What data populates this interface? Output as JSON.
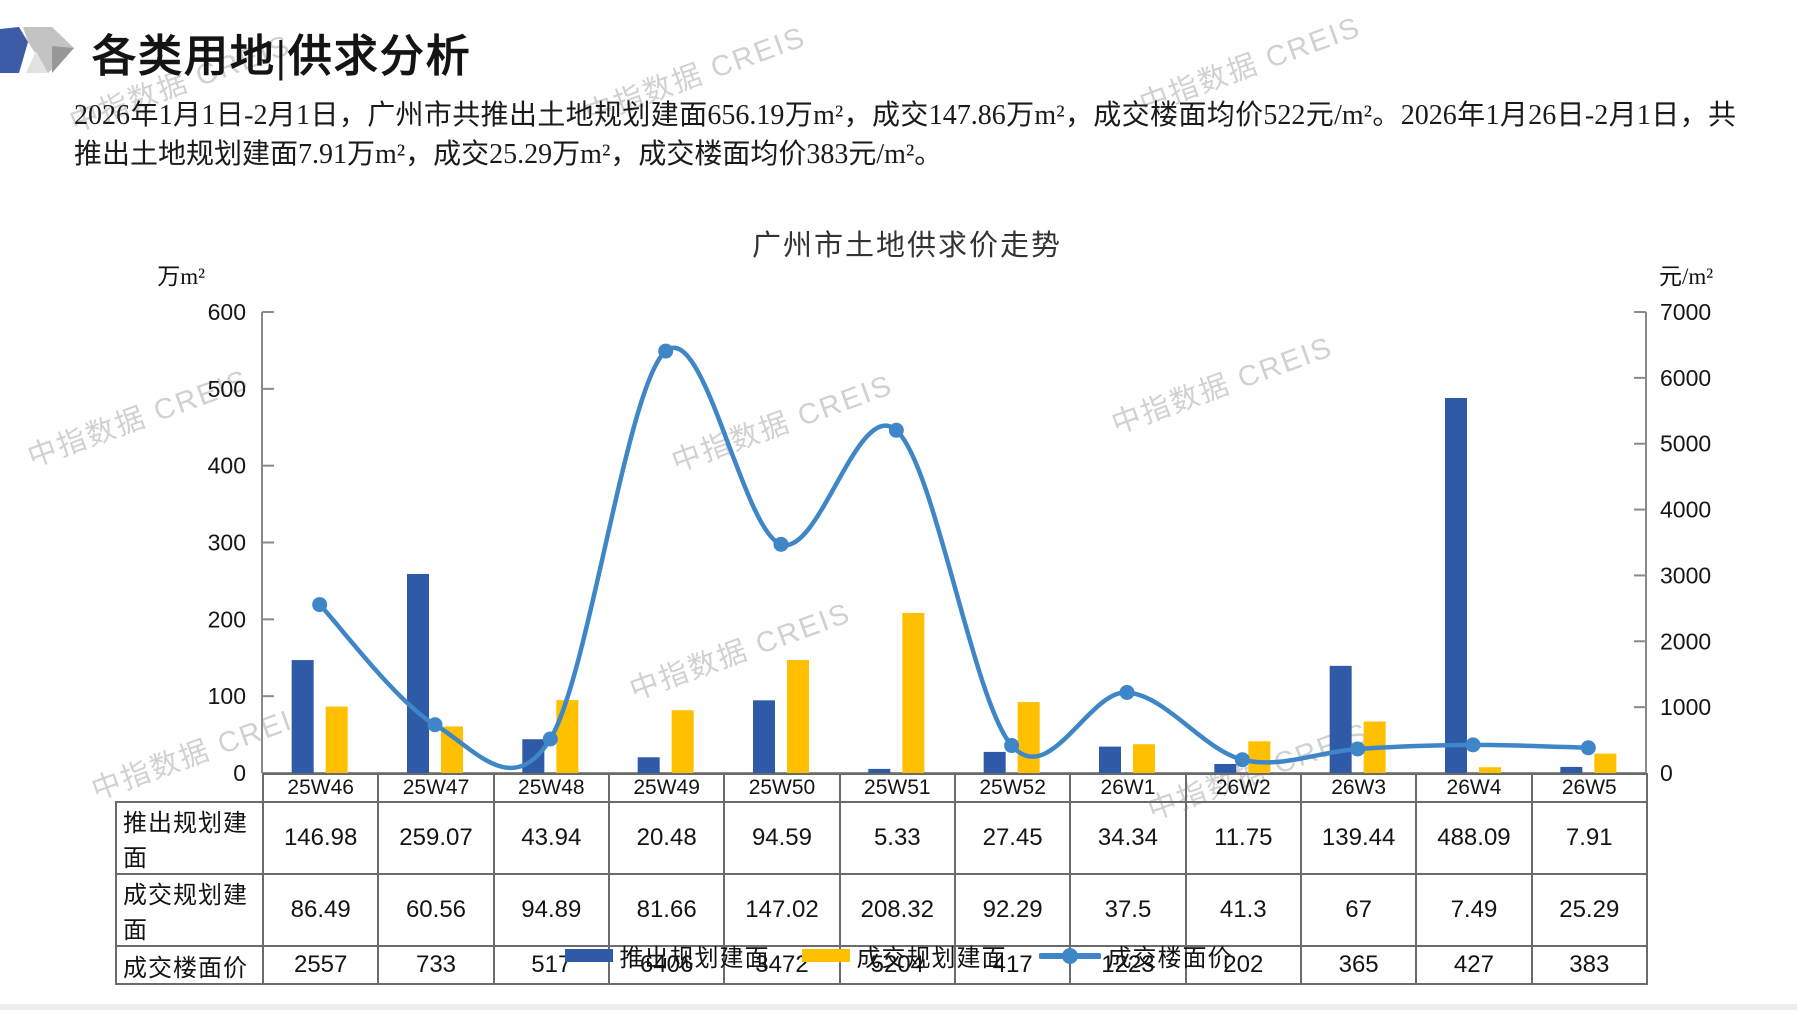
{
  "page": {
    "title": "各类用地|供求分析",
    "summary": "2026年1月1日-2月1日，广州市共推出土地规划建面656.19万m²，成交147.86万m²，成交楼面均价522元/m²。2026年1月26日-2月1日，共推出土地规划建面7.91万m²，成交25.29万m²，成交楼面均价383元/m²。",
    "watermark_text": "中指数据 CREIS"
  },
  "chart_data": {
    "type": "combo-bar-line",
    "title": "广州市土地供求价走势",
    "categories": [
      "25W46",
      "25W47",
      "25W48",
      "25W49",
      "25W50",
      "25W51",
      "25W52",
      "26W1",
      "26W2",
      "26W3",
      "26W4",
      "26W5"
    ],
    "series": [
      {
        "name": "推出规划建面",
        "type": "bar",
        "axis": "left",
        "color": "#2E5AA7",
        "values": [
          146.98,
          259.07,
          43.94,
          20.48,
          94.59,
          5.33,
          27.45,
          34.34,
          11.75,
          139.44,
          488.09,
          7.91
        ]
      },
      {
        "name": "成交规划建面",
        "type": "bar",
        "axis": "left",
        "color": "#FFC000",
        "values": [
          86.49,
          60.56,
          94.89,
          81.66,
          147.02,
          208.32,
          92.29,
          37.5,
          41.3,
          67,
          7.49,
          25.29
        ]
      },
      {
        "name": "成交楼面价",
        "type": "line",
        "axis": "right",
        "color": "#3E86C8",
        "values": [
          2557,
          733,
          517,
          6406,
          3472,
          5204,
          417,
          1223,
          202,
          365,
          427,
          383
        ]
      }
    ],
    "left_axis": {
      "unit": "万m²",
      "min": 0,
      "max": 600,
      "ticks": [
        "0",
        "100",
        "200",
        "300",
        "400",
        "500",
        "600"
      ]
    },
    "right_axis": {
      "unit": "元/m²",
      "min": 0,
      "max": 7000,
      "ticks": [
        "0",
        "1000",
        "2000",
        "3000",
        "4000",
        "5000",
        "6000",
        "7000"
      ]
    },
    "gridlines": false,
    "legend_position": "bottom",
    "table": {
      "row_headers": [
        "推出规划建面",
        "成交规划建面",
        "成交楼面价"
      ],
      "rows": [
        [
          "146.98",
          "259.07",
          "43.94",
          "20.48",
          "94.59",
          "5.33",
          "27.45",
          "34.34",
          "11.75",
          "139.44",
          "488.09",
          "7.91"
        ],
        [
          "86.49",
          "60.56",
          "94.89",
          "81.66",
          "147.02",
          "208.32",
          "92.29",
          "37.5",
          "41.3",
          "67",
          "7.49",
          "25.29"
        ],
        [
          "2557",
          "733",
          "517",
          "6406",
          "3472",
          "5204",
          "417",
          "1223",
          "202",
          "365",
          "427",
          "383"
        ]
      ]
    }
  }
}
